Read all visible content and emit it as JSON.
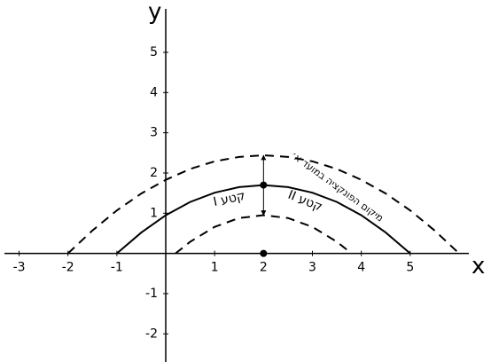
{
  "chart_data": {
    "type": "line",
    "x_label": "x",
    "y_label": "y",
    "xlim": [
      -3.3,
      6.2
    ],
    "ylim": [
      -2.7,
      5.64
    ],
    "xticks": [
      -3,
      -2,
      -1,
      1,
      2,
      3,
      4,
      5
    ],
    "yticks": [
      -2,
      -1,
      1,
      2,
      3,
      4,
      5
    ],
    "series": [
      {
        "color": "#000000",
        "dashed": false,
        "x": [
          -1,
          -0.5,
          0,
          0.5,
          1,
          1.5,
          2,
          2.5,
          3,
          3.5,
          4,
          4.5,
          5
        ],
        "values": [
          0,
          0.52,
          0.95,
          1.28,
          1.51,
          1.65,
          1.7,
          1.65,
          1.51,
          1.28,
          0.95,
          0.52,
          0
        ]
      },
      {
        "color": "#000000",
        "dashed": true,
        "x": [
          -2,
          -1.5,
          -1,
          -0.5,
          0,
          0.5,
          1,
          1.5,
          2,
          2.5,
          3,
          3.5,
          4,
          4.5,
          5,
          5.5,
          6
        ],
        "values": [
          0,
          0.57,
          1.07,
          1.49,
          1.83,
          2.1,
          2.29,
          2.4,
          2.44,
          2.4,
          2.29,
          2.1,
          1.83,
          1.49,
          1.07,
          0.57,
          0
        ]
      },
      {
        "color": "#000000",
        "dashed": true,
        "x": [
          0.2,
          0.5,
          1,
          1.5,
          2,
          2.5,
          3,
          3.5,
          3.8
        ],
        "values": [
          0,
          0.29,
          0.66,
          0.88,
          0.95,
          0.88,
          0.66,
          0.29,
          0
        ]
      }
    ],
    "points": {
      "x": [
        2,
        2
      ],
      "values": [
        1.7,
        0
      ]
    },
    "arrow": {
      "x": 2,
      "from": 1.7,
      "up_to": 2.44,
      "down_to": 0.95
    },
    "annotations": [
      {
        "text": "קטע I",
        "x": 1.3,
        "y": 1.35,
        "angle": -12
      },
      {
        "text": "קטע II",
        "x": 2.85,
        "y": 1.3,
        "angle": 22
      },
      {
        "text": "מיקום הפונקציה במועד א׳",
        "x": 3.5,
        "y": 1.65,
        "angle": 36
      }
    ]
  }
}
